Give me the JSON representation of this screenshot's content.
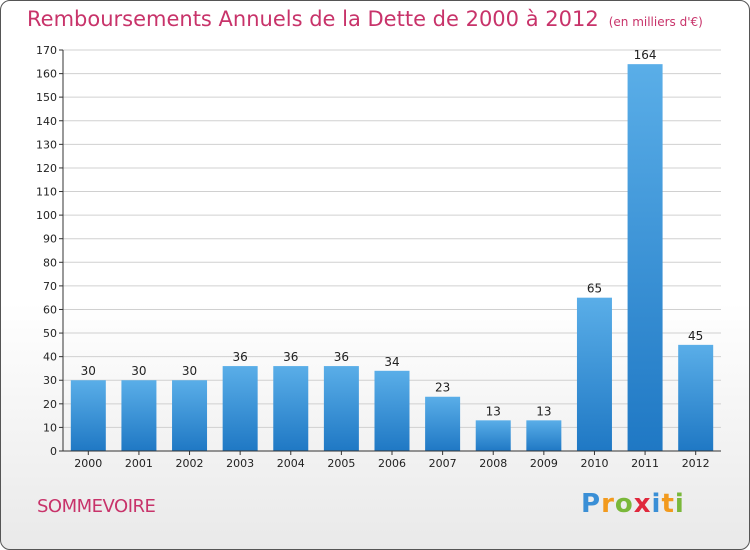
{
  "title": "Remboursements Annuels de la Dette de 2000 à 2012",
  "unit_note": "(en milliers d'€)",
  "location": "SOMMEVOIRE",
  "brand": {
    "text": "Proxiti",
    "letters": [
      {
        "char": "P",
        "color": "#3a8fd6"
      },
      {
        "char": "r",
        "color": "#f29a1d"
      },
      {
        "char": "o",
        "color": "#7ab83a"
      },
      {
        "char": "x",
        "color": "#e0283c"
      },
      {
        "char": "i",
        "color": "#3a8fd6"
      },
      {
        "char": "t",
        "color": "#f29a1d"
      },
      {
        "char": "i",
        "color": "#7ab83a"
      }
    ]
  },
  "colors": {
    "title": "#c8336a",
    "bar_top": "#5aaee8",
    "bar_bottom": "#1f78c4",
    "grid": "#d0d0d0",
    "axis": "#333333"
  },
  "chart_data": {
    "type": "bar",
    "categories": [
      "2000",
      "2001",
      "2002",
      "2003",
      "2004",
      "2005",
      "2006",
      "2007",
      "2008",
      "2009",
      "2010",
      "2011",
      "2012"
    ],
    "values": [
      30,
      30,
      30,
      36,
      36,
      36,
      34,
      23,
      13,
      13,
      65,
      164,
      45
    ],
    "ylim": [
      0,
      170
    ],
    "ytick_step": 10,
    "grid": true
  }
}
